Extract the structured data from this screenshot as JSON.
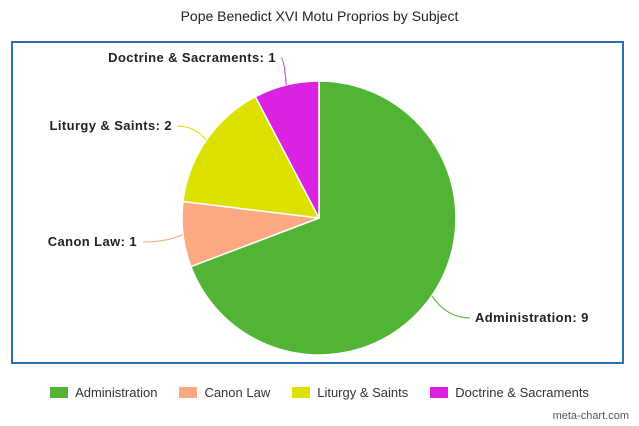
{
  "chart_data": {
    "type": "pie",
    "title": "Pope Benedict XVI Motu Proprios by Subject",
    "slices": [
      {
        "name": "Administration",
        "value": 9,
        "color": "#52b434"
      },
      {
        "name": "Canon Law",
        "value": 1,
        "color": "#fca883"
      },
      {
        "name": "Liturgy & Saints",
        "value": 2,
        "color": "#dce100"
      },
      {
        "name": "Doctrine & Sacraments",
        "value": 1,
        "color": "#db22e2"
      }
    ],
    "labels": [
      "Administration: 9",
      "Canon Law: 1",
      "Liturgy & Saints: 2",
      "Doctrine & Sacraments: 1"
    ],
    "legend_position": "bottom",
    "start_angle": "top",
    "direction": "clockwise"
  },
  "watermark": "meta-chart.com"
}
